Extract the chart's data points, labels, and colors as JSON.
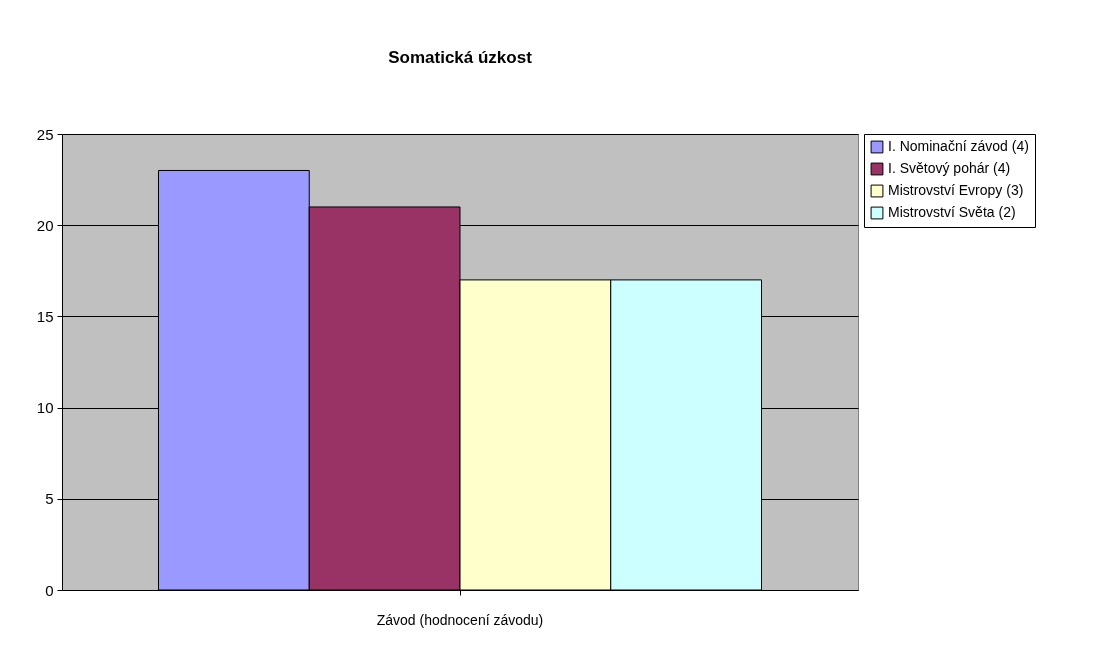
{
  "chart_data": {
    "type": "bar",
    "title": "Somatická úzkost",
    "categories": [
      "Závod (hodnocení závodu)"
    ],
    "series": [
      {
        "name": "I. Nominační závod (4)",
        "color": "#9999ff",
        "values": [
          23
        ]
      },
      {
        "name": "I. Světový pohár (4)",
        "color": "#993366",
        "values": [
          21
        ]
      },
      {
        "name": "Mistrovství Evropy (3)",
        "color": "#ffffcc",
        "values": [
          17
        ]
      },
      {
        "name": "Mistrovství Světa (2)",
        "color": "#ccffff",
        "values": [
          17
        ]
      }
    ],
    "ylim": [
      0,
      25
    ],
    "yticks": [
      0,
      5,
      10,
      15,
      20,
      25
    ],
    "grid": "y",
    "legend": "right"
  }
}
